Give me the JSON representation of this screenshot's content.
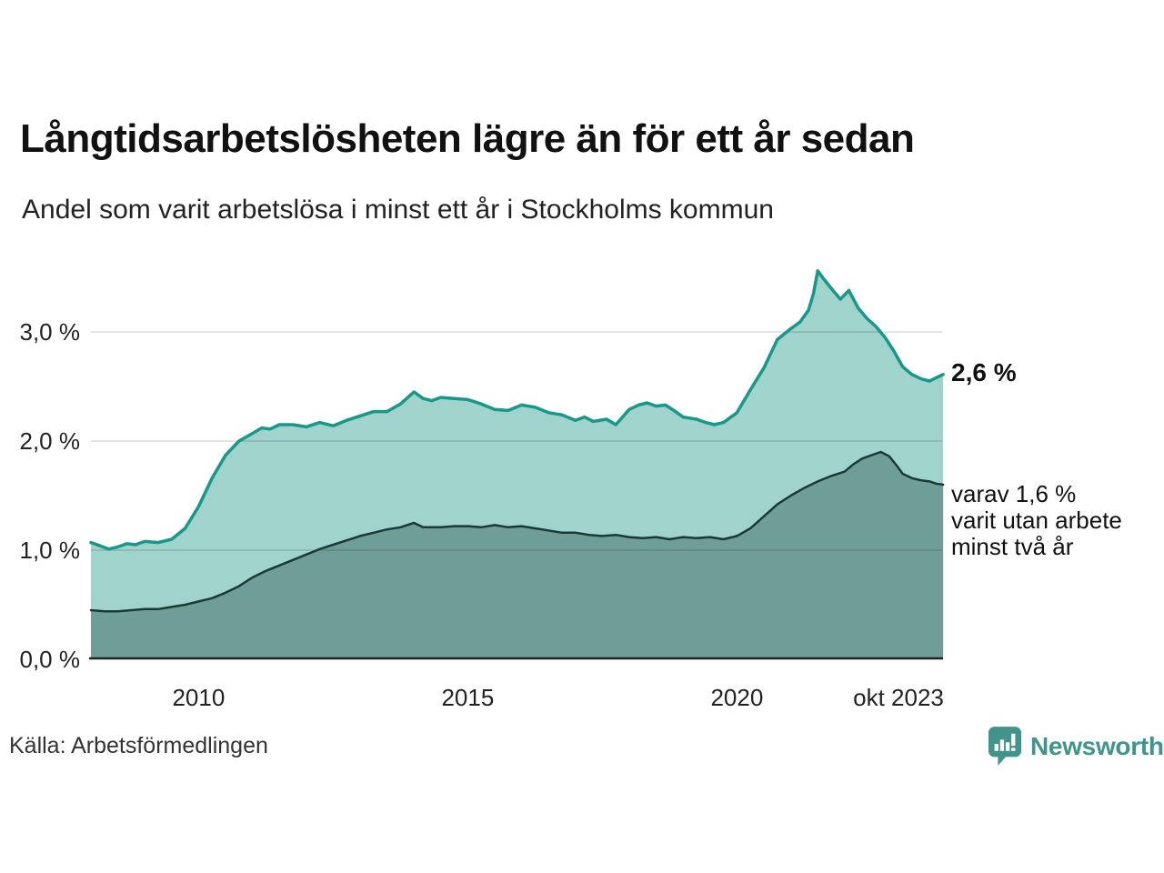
{
  "header": {
    "title": "Långtidsarbetslösheten lägre än för ett år sedan",
    "subtitle": "Andel som varit arbetslösa i minst ett år i Stockholms kommun"
  },
  "chart_data": {
    "type": "area",
    "title": "Långtidsarbetslösheten lägre än för ett år sedan",
    "subtitle": "Andel som varit arbetslösa i minst ett år i Stockholms kommun",
    "xlabel": "",
    "ylabel": "",
    "x_unit": "year (monthly series)",
    "x_range": [
      2008.0,
      2023.83
    ],
    "ylim": [
      0,
      3.7
    ],
    "grid": "horizontal",
    "gridline_color": "#d9d9d9",
    "axis_color": "#222222",
    "y_ticks": [
      {
        "label": "3,0 %",
        "pct": 3.0
      },
      {
        "label": "2,0 %",
        "pct": 2.0
      },
      {
        "label": "1,0 %",
        "pct": 1.0
      },
      {
        "label": "0,0 %",
        "pct": 0.0
      }
    ],
    "x_ticks": [
      {
        "label": "2010",
        "year": 2010
      },
      {
        "label": "2015",
        "year": 2015
      },
      {
        "label": "2020",
        "year": 2020
      },
      {
        "label": "okt 2023",
        "year": 2023.0
      }
    ],
    "series": [
      {
        "name": "arbetslösa minst ett år",
        "line_color": "#18988a",
        "fill_color": "#9fd3cb",
        "line_width": 3.5,
        "end_value_label": "2,6 %",
        "points": [
          [
            2008.0,
            1.07
          ],
          [
            2008.17,
            1.04
          ],
          [
            2008.33,
            1.01
          ],
          [
            2008.5,
            1.03
          ],
          [
            2008.67,
            1.06
          ],
          [
            2008.83,
            1.05
          ],
          [
            2009.0,
            1.08
          ],
          [
            2009.25,
            1.07
          ],
          [
            2009.5,
            1.1
          ],
          [
            2009.75,
            1.2
          ],
          [
            2010.0,
            1.4
          ],
          [
            2010.25,
            1.66
          ],
          [
            2010.5,
            1.87
          ],
          [
            2010.75,
            2.0
          ],
          [
            2011.0,
            2.07
          ],
          [
            2011.17,
            2.12
          ],
          [
            2011.33,
            2.11
          ],
          [
            2011.5,
            2.15
          ],
          [
            2011.75,
            2.15
          ],
          [
            2012.0,
            2.13
          ],
          [
            2012.25,
            2.17
          ],
          [
            2012.5,
            2.14
          ],
          [
            2012.75,
            2.19
          ],
          [
            2013.0,
            2.23
          ],
          [
            2013.25,
            2.27
          ],
          [
            2013.5,
            2.27
          ],
          [
            2013.75,
            2.34
          ],
          [
            2014.0,
            2.45
          ],
          [
            2014.17,
            2.39
          ],
          [
            2014.33,
            2.37
          ],
          [
            2014.5,
            2.4
          ],
          [
            2014.75,
            2.39
          ],
          [
            2015.0,
            2.38
          ],
          [
            2015.25,
            2.34
          ],
          [
            2015.5,
            2.29
          ],
          [
            2015.75,
            2.28
          ],
          [
            2016.0,
            2.33
          ],
          [
            2016.25,
            2.31
          ],
          [
            2016.5,
            2.26
          ],
          [
            2016.75,
            2.24
          ],
          [
            2017.0,
            2.19
          ],
          [
            2017.17,
            2.22
          ],
          [
            2017.33,
            2.18
          ],
          [
            2017.58,
            2.2
          ],
          [
            2017.75,
            2.15
          ],
          [
            2018.0,
            2.29
          ],
          [
            2018.17,
            2.33
          ],
          [
            2018.33,
            2.35
          ],
          [
            2018.5,
            2.32
          ],
          [
            2018.67,
            2.33
          ],
          [
            2018.83,
            2.28
          ],
          [
            2019.0,
            2.22
          ],
          [
            2019.25,
            2.2
          ],
          [
            2019.42,
            2.17
          ],
          [
            2019.58,
            2.15
          ],
          [
            2019.75,
            2.17
          ],
          [
            2020.0,
            2.26
          ],
          [
            2020.25,
            2.47
          ],
          [
            2020.5,
            2.67
          ],
          [
            2020.75,
            2.93
          ],
          [
            2021.0,
            3.03
          ],
          [
            2021.17,
            3.09
          ],
          [
            2021.33,
            3.2
          ],
          [
            2021.42,
            3.35
          ],
          [
            2021.5,
            3.56
          ],
          [
            2021.62,
            3.48
          ],
          [
            2021.75,
            3.4
          ],
          [
            2021.92,
            3.3
          ],
          [
            2022.08,
            3.38
          ],
          [
            2022.25,
            3.22
          ],
          [
            2022.42,
            3.12
          ],
          [
            2022.58,
            3.05
          ],
          [
            2022.75,
            2.95
          ],
          [
            2022.92,
            2.82
          ],
          [
            2023.08,
            2.68
          ],
          [
            2023.25,
            2.61
          ],
          [
            2023.42,
            2.57
          ],
          [
            2023.58,
            2.55
          ],
          [
            2023.7,
            2.58
          ],
          [
            2023.83,
            2.61
          ]
        ]
      },
      {
        "name": "varav arbetslösa minst två år",
        "line_color": "#1b3a37",
        "fill_color": "#6f9e97",
        "line_width": 2.5,
        "end_value_label": "1,6 %",
        "points": [
          [
            2008.0,
            0.45
          ],
          [
            2008.25,
            0.44
          ],
          [
            2008.5,
            0.44
          ],
          [
            2008.75,
            0.45
          ],
          [
            2009.0,
            0.46
          ],
          [
            2009.25,
            0.46
          ],
          [
            2009.5,
            0.48
          ],
          [
            2009.75,
            0.5
          ],
          [
            2010.0,
            0.53
          ],
          [
            2010.25,
            0.56
          ],
          [
            2010.5,
            0.61
          ],
          [
            2010.75,
            0.67
          ],
          [
            2011.0,
            0.75
          ],
          [
            2011.25,
            0.81
          ],
          [
            2011.5,
            0.86
          ],
          [
            2011.75,
            0.91
          ],
          [
            2012.0,
            0.96
          ],
          [
            2012.25,
            1.01
          ],
          [
            2012.5,
            1.05
          ],
          [
            2012.75,
            1.09
          ],
          [
            2013.0,
            1.13
          ],
          [
            2013.25,
            1.16
          ],
          [
            2013.5,
            1.19
          ],
          [
            2013.75,
            1.21
          ],
          [
            2014.0,
            1.25
          ],
          [
            2014.17,
            1.21
          ],
          [
            2014.5,
            1.21
          ],
          [
            2014.75,
            1.22
          ],
          [
            2015.0,
            1.22
          ],
          [
            2015.25,
            1.21
          ],
          [
            2015.5,
            1.23
          ],
          [
            2015.75,
            1.21
          ],
          [
            2016.0,
            1.22
          ],
          [
            2016.25,
            1.2
          ],
          [
            2016.5,
            1.18
          ],
          [
            2016.75,
            1.16
          ],
          [
            2017.0,
            1.16
          ],
          [
            2017.25,
            1.14
          ],
          [
            2017.5,
            1.13
          ],
          [
            2017.75,
            1.14
          ],
          [
            2018.0,
            1.12
          ],
          [
            2018.25,
            1.11
          ],
          [
            2018.5,
            1.12
          ],
          [
            2018.75,
            1.1
          ],
          [
            2019.0,
            1.12
          ],
          [
            2019.25,
            1.11
          ],
          [
            2019.5,
            1.12
          ],
          [
            2019.75,
            1.1
          ],
          [
            2020.0,
            1.13
          ],
          [
            2020.25,
            1.2
          ],
          [
            2020.5,
            1.31
          ],
          [
            2020.75,
            1.42
          ],
          [
            2021.0,
            1.5
          ],
          [
            2021.25,
            1.57
          ],
          [
            2021.5,
            1.63
          ],
          [
            2021.75,
            1.68
          ],
          [
            2022.0,
            1.72
          ],
          [
            2022.17,
            1.79
          ],
          [
            2022.33,
            1.84
          ],
          [
            2022.5,
            1.87
          ],
          [
            2022.67,
            1.9
          ],
          [
            2022.83,
            1.86
          ],
          [
            2022.96,
            1.78
          ],
          [
            2023.08,
            1.7
          ],
          [
            2023.25,
            1.66
          ],
          [
            2023.42,
            1.64
          ],
          [
            2023.58,
            1.63
          ],
          [
            2023.7,
            1.61
          ],
          [
            2023.83,
            1.6
          ]
        ]
      }
    ],
    "annotations": {
      "end_value": "2,6 %",
      "secondary": [
        "varav 1,6 %",
        "varit utan arbete",
        "minst två år"
      ]
    }
  },
  "footer": {
    "source": "Källa: Arbetsförmedlingen",
    "brand": "Newsworthy",
    "brand_color": "#40948c"
  }
}
